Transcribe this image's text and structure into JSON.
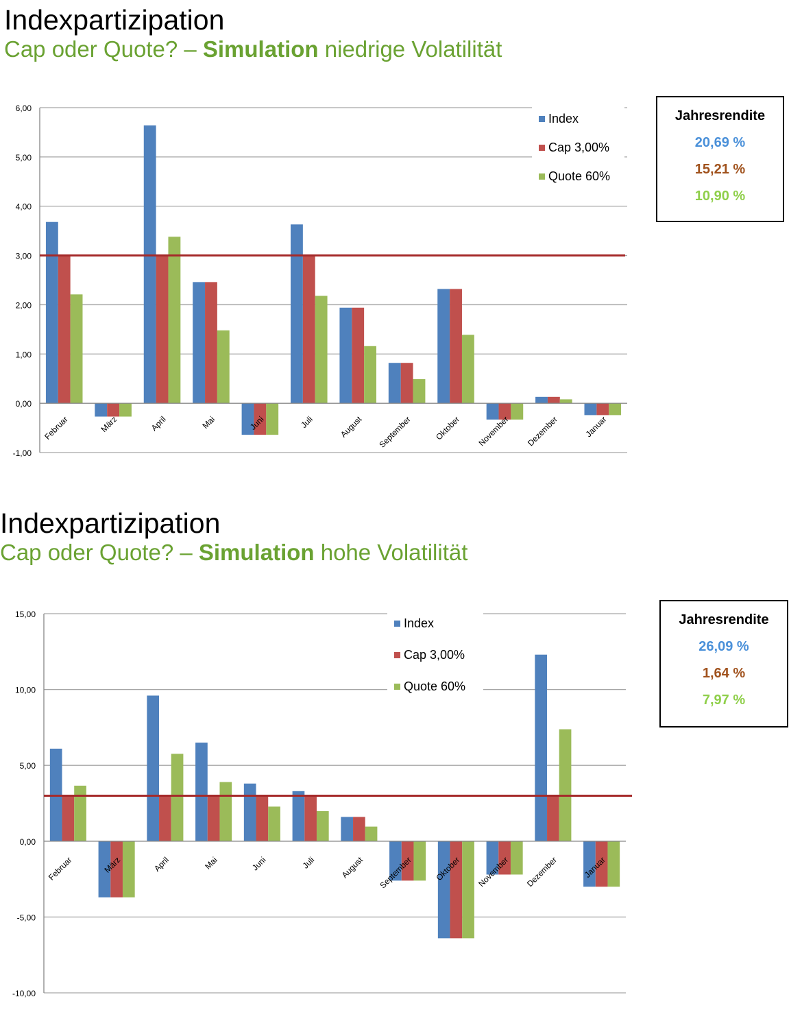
{
  "page": {
    "section1": {
      "title": "Indexpartizipation",
      "subtitle_pre": "Cap oder Quote? – ",
      "subtitle_bold": "Simulation",
      "subtitle_post": " niedrige Volatilität"
    },
    "section2": {
      "title": "Indexpartizipation",
      "subtitle_pre": "Cap oder Quote? – ",
      "subtitle_bold": "Simulation",
      "subtitle_post": " hohe Volatilität"
    }
  },
  "returns": [
    {
      "title": "Jahresrendite",
      "index": "20,69 %",
      "cap": "15,21 %",
      "quote": "10,90 %"
    },
    {
      "title": "Jahresrendite",
      "index": "26,09 %",
      "cap": "1,64 %",
      "quote": "7,97 %"
    }
  ],
  "colors": {
    "index": "#4f81bd",
    "cap": "#c0504d",
    "quote": "#9bbb59",
    "cap_line": "#a52a2a",
    "grid": "#a6a6a6",
    "title_green": "#6aa232"
  },
  "chart_data": [
    {
      "type": "bar",
      "categories": [
        "Februar",
        "März",
        "April",
        "Mai",
        "Juni",
        "Juli",
        "August",
        "September",
        "Oktober",
        "November",
        "Dezember",
        "Januar"
      ],
      "series": [
        {
          "name": "Index",
          "values": [
            3.68,
            -0.27,
            5.64,
            2.46,
            -0.64,
            3.63,
            1.94,
            0.82,
            2.32,
            -0.33,
            0.13,
            -0.24
          ]
        },
        {
          "name": "Cap 3,00%",
          "values": [
            3.0,
            -0.27,
            3.0,
            2.46,
            -0.64,
            3.0,
            1.94,
            0.82,
            2.32,
            -0.33,
            0.13,
            -0.24
          ]
        },
        {
          "name": "Quote 60%",
          "values": [
            2.21,
            -0.27,
            3.38,
            1.48,
            -0.64,
            2.18,
            1.16,
            0.49,
            1.39,
            -0.33,
            0.08,
            -0.24
          ]
        }
      ],
      "cap_line": 3.0,
      "ylim": [
        -1,
        6
      ],
      "yticks": [
        "-1,00",
        "0,00",
        "1,00",
        "2,00",
        "3,00",
        "4,00",
        "5,00",
        "6,00"
      ],
      "ytick_values": [
        -1,
        0,
        1,
        2,
        3,
        4,
        5,
        6
      ],
      "grid": true,
      "legend": "top-right"
    },
    {
      "type": "bar",
      "categories": [
        "Februar",
        "März",
        "April",
        "Mai",
        "Juni",
        "Juli",
        "August",
        "September",
        "Oktober",
        "November",
        "Dezember",
        "Januar"
      ],
      "series": [
        {
          "name": "Index",
          "values": [
            6.1,
            -3.7,
            9.6,
            6.5,
            3.8,
            3.3,
            1.6,
            -2.6,
            -6.4,
            -2.2,
            12.3,
            -3.0
          ]
        },
        {
          "name": "Cap 3,00%",
          "values": [
            3.0,
            -3.7,
            3.0,
            3.0,
            3.0,
            3.0,
            1.6,
            -2.6,
            -6.4,
            -2.2,
            3.0,
            -3.0
          ]
        },
        {
          "name": "Quote 60%",
          "values": [
            3.66,
            -3.7,
            5.76,
            3.9,
            2.28,
            1.98,
            0.96,
            -2.6,
            -6.4,
            -2.2,
            7.38,
            -3.0
          ]
        }
      ],
      "cap_line": 3.0,
      "ylim": [
        -10,
        15
      ],
      "yticks": [
        "-10,00",
        "-5,00",
        "0,00",
        "5,00",
        "10,00",
        "15,00"
      ],
      "ytick_values": [
        -10,
        -5,
        0,
        5,
        10,
        15
      ],
      "grid": true,
      "legend": "top-center"
    }
  ]
}
